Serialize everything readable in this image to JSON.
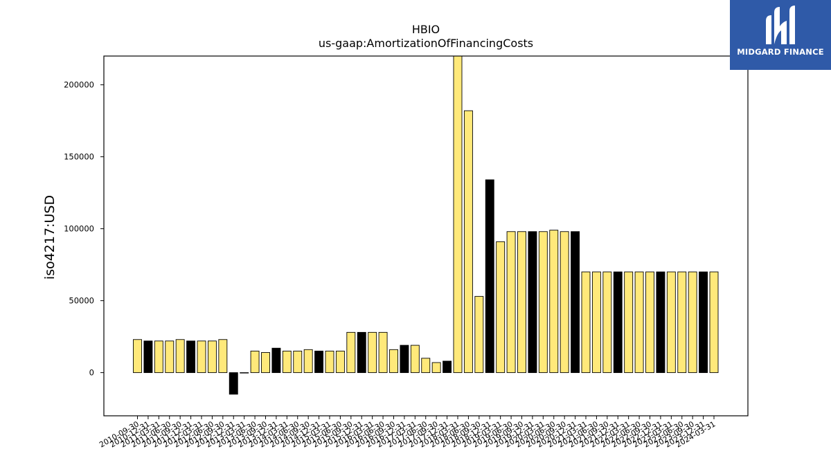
{
  "chart_data": {
    "type": "bar",
    "title": "HBIO",
    "subtitle": "us-gaap:AmortizationOfFinancingCosts",
    "ylabel": "iso4217:USD",
    "xlabel": "",
    "ylim": [
      -30000,
      220000
    ],
    "yticks": [
      0,
      50000,
      100000,
      150000,
      200000
    ],
    "grid": false,
    "colors": {
      "primary": "#ffe97a",
      "alternate": "#000000",
      "edge": "#000000"
    },
    "categories": [
      "2010-09-30",
      "2010-12-31",
      "2011-03-31",
      "2011-06-30",
      "2011-09-30",
      "2011-12-31",
      "2012-03-31",
      "2012-06-30",
      "2012-09-30",
      "2012-12-31",
      "2013-03-31",
      "2013-06-30",
      "2013-09-30",
      "2013-12-31",
      "2014-03-31",
      "2014-06-30",
      "2014-09-30",
      "2014-12-31",
      "2015-03-31",
      "2015-06-30",
      "2015-09-30",
      "2015-12-31",
      "2016-03-31",
      "2016-06-30",
      "2016-09-30",
      "2016-12-31",
      "2017-03-31",
      "2017-06-30",
      "2017-09-30",
      "2017-12-31",
      "2018-03-31",
      "2018-06-30",
      "2018-09-30",
      "2018-12-31",
      "2019-03-31",
      "2019-06-30",
      "2019-09-30",
      "2019-12-31",
      "2020-03-31",
      "2020-06-30",
      "2020-09-30",
      "2020-12-31",
      "2021-03-31",
      "2021-06-30",
      "2021-09-30",
      "2021-12-31",
      "2022-03-31",
      "2022-06-30",
      "2022-09-30",
      "2022-12-31",
      "2023-03-31",
      "2023-06-30",
      "2023-09-30",
      "2023-12-31",
      "2024-03-31"
    ],
    "values": [
      23000,
      22000,
      22000,
      22000,
      23000,
      22000,
      22000,
      22000,
      23000,
      -15000,
      0,
      15000,
      14000,
      17000,
      15000,
      15000,
      16000,
      15000,
      15000,
      15000,
      28000,
      28000,
      28000,
      28000,
      16000,
      19000,
      19000,
      10000,
      7000,
      8000,
      220000,
      182000,
      53000,
      134000,
      91000,
      98000,
      98000,
      98000,
      98000,
      99000,
      98000,
      98000,
      70000,
      70000,
      70000,
      70000,
      70000,
      70000,
      70000,
      70000,
      70000,
      70000,
      70000,
      70000,
      70000
    ],
    "bar_colors": [
      "primary",
      "alternate",
      "primary",
      "primary",
      "primary",
      "alternate",
      "primary",
      "primary",
      "primary",
      "alternate",
      "primary",
      "primary",
      "primary",
      "alternate",
      "primary",
      "primary",
      "primary",
      "alternate",
      "primary",
      "primary",
      "primary",
      "alternate",
      "primary",
      "primary",
      "primary",
      "alternate",
      "primary",
      "primary",
      "primary",
      "alternate",
      "primary",
      "primary",
      "primary",
      "alternate",
      "primary",
      "primary",
      "primary",
      "alternate",
      "primary",
      "primary",
      "primary",
      "alternate",
      "primary",
      "primary",
      "primary",
      "alternate",
      "primary",
      "primary",
      "primary",
      "alternate",
      "primary",
      "primary",
      "primary",
      "alternate",
      "primary"
    ]
  },
  "logo": {
    "name": "MIDGARD FINANCE",
    "background": "#2f5aa8"
  }
}
